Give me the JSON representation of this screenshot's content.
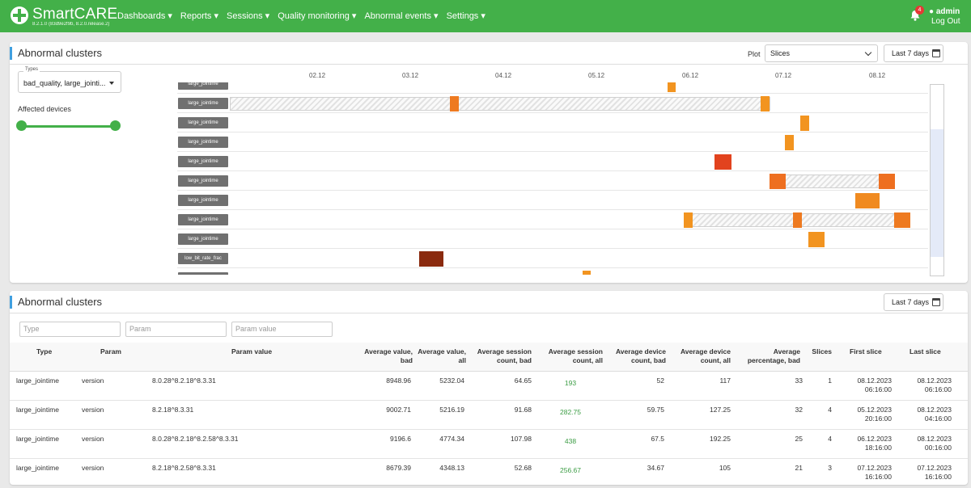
{
  "header": {
    "brand": "SmartCARE",
    "version": "8.2.1.0 (83d9e2f9b, 8.2.0.release.2)",
    "nav": [
      "Dashboards ▾",
      "Reports ▾",
      "Sessions ▾",
      "Quality monitoring ▾",
      "Abnormal events ▾",
      "Settings ▾"
    ],
    "notifications": "4",
    "user": "admin",
    "logout": "Log Out",
    "accent": "#43b049"
  },
  "clusters_panel": {
    "title": "Abnormal clusters",
    "plot_label": "Plot",
    "plot_value": "Slices",
    "range_button": "Last 7 days",
    "types_caption": "Types",
    "types_value": "bad_quality, large_jointi...",
    "affected_label": "Affected devices",
    "axis_ticks": [
      "02.12",
      "03.12",
      "04.12",
      "05.12",
      "06.12",
      "07.12",
      "08.12"
    ],
    "rows": [
      {
        "label": "large_jointime"
      },
      {
        "label": "large_jointime"
      },
      {
        "label": "large_jointime"
      },
      {
        "label": "large_jointime"
      },
      {
        "label": "large_jointime"
      },
      {
        "label": "large_jointime"
      },
      {
        "label": "large_jointime"
      },
      {
        "label": "large_jointime"
      },
      {
        "label": "large_jointime"
      },
      {
        "label": "low_bit_rate_frac"
      },
      {
        "label": "large_jointime"
      }
    ]
  },
  "table_panel": {
    "title": "Abnormal clusters",
    "range_button": "Last 7 days",
    "filters": {
      "type": "Type",
      "param": "Param",
      "param_value": "Param value"
    },
    "columns": [
      "Type",
      "Param",
      "Param value",
      "Average value, bad",
      "Average value, all",
      "Average session count, bad",
      "Average session count, all",
      "Average device count, bad",
      "Average device count, all",
      "Average percentage, bad",
      "Slices",
      "First slice",
      "Last slice"
    ],
    "rows": [
      {
        "type": "large_jointime",
        "param": "version",
        "param_value": "8.0.28^8.2.18^8.3.31",
        "avg_bad": "8948.96",
        "avg_all": "5232.04",
        "sess_bad": "64.65",
        "sess_all": "193",
        "dev_bad": "52",
        "dev_all": "117",
        "pct_bad": "33",
        "slices": "1",
        "first_date": "08.12.2023",
        "first_time": "06:16:00",
        "last_date": "08.12.2023",
        "last_time": "06:16:00"
      },
      {
        "type": "large_jointime",
        "param": "version",
        "param_value": "8.2.18^8.3.31",
        "avg_bad": "9002.71",
        "avg_all": "5216.19",
        "sess_bad": "91.68",
        "sess_all": "282.75",
        "dev_bad": "59.75",
        "dev_all": "127.25",
        "pct_bad": "32",
        "slices": "4",
        "first_date": "05.12.2023",
        "first_time": "20:16:00",
        "last_date": "08.12.2023",
        "last_time": "04:16:00"
      },
      {
        "type": "large_jointime",
        "param": "version",
        "param_value": "8.0.28^8.2.18^8.2.58^8.3.31",
        "avg_bad": "9196.6",
        "avg_all": "4774.34",
        "sess_bad": "107.98",
        "sess_all": "438",
        "dev_bad": "67.5",
        "dev_all": "192.25",
        "pct_bad": "25",
        "slices": "4",
        "first_date": "06.12.2023",
        "first_time": "18:16:00",
        "last_date": "08.12.2023",
        "last_time": "00:16:00"
      },
      {
        "type": "large_jointime",
        "param": "version",
        "param_value": "8.2.18^8.2.58^8.3.31",
        "avg_bad": "8679.39",
        "avg_all": "4348.13",
        "sess_bad": "52.68",
        "sess_all": "256.67",
        "dev_bad": "34.67",
        "dev_all": "105",
        "pct_bad": "21",
        "slices": "3",
        "first_date": "07.12.2023",
        "first_time": "16:16:00",
        "last_date": "07.12.2023",
        "last_time": "16:16:00"
      }
    ]
  }
}
